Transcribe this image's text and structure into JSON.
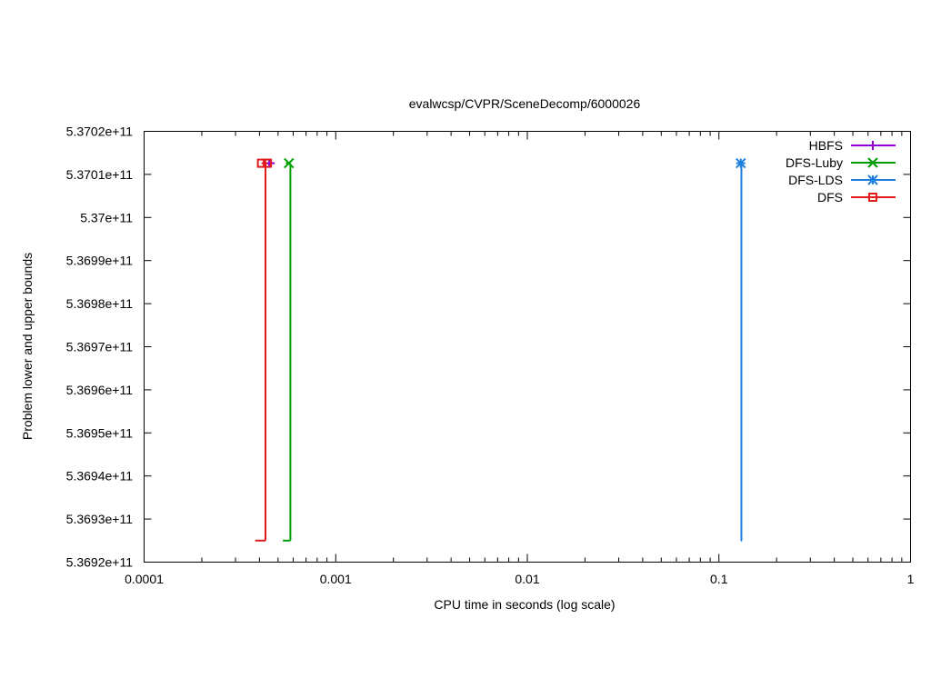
{
  "chart_data": {
    "type": "line",
    "title": "evalwcsp/CVPR/SceneDecomp/6000026",
    "xlabel": "CPU time in seconds (log scale)",
    "ylabel": "Problem lower and upper bounds",
    "x_scale": "log",
    "xlim": [
      0.0001,
      1
    ],
    "ylim": [
      536920000000,
      537020000000
    ],
    "x_ticks": [
      {
        "value": 0.0001,
        "label": "0.0001"
      },
      {
        "value": 0.001,
        "label": "0.001"
      },
      {
        "value": 0.01,
        "label": "0.01"
      },
      {
        "value": 0.1,
        "label": "0.1"
      },
      {
        "value": 1,
        "label": "1"
      }
    ],
    "y_ticks": [
      {
        "value": 536920000000,
        "label": "5.3692e+11"
      },
      {
        "value": 536930000000,
        "label": "5.3693e+11"
      },
      {
        "value": 536940000000,
        "label": "5.3694e+11"
      },
      {
        "value": 536950000000,
        "label": "5.3695e+11"
      },
      {
        "value": 536960000000,
        "label": "5.3696e+11"
      },
      {
        "value": 536970000000,
        "label": "5.3697e+11"
      },
      {
        "value": 536980000000,
        "label": "5.3698e+11"
      },
      {
        "value": 536990000000,
        "label": "5.3699e+11"
      },
      {
        "value": 537000000000,
        "label": "5.37e+11"
      },
      {
        "value": 537010000000,
        "label": "5.3701e+11"
      },
      {
        "value": 537020000000,
        "label": "5.3702e+11"
      }
    ],
    "grid": false,
    "legend_position": "top-right",
    "series": [
      {
        "name": "HBFS",
        "color": "#9400d3",
        "marker": "plus",
        "upper": [
          {
            "x": 0.00042,
            "y": 537012600000
          },
          {
            "x": 0.00048,
            "y": 537012600000
          }
        ],
        "lower": [],
        "markers": [
          {
            "x": 0.00045,
            "y": 537012600000
          }
        ]
      },
      {
        "name": "DFS-Luby",
        "color": "#009e00",
        "marker": "x",
        "upper": [
          {
            "x": 0.00055,
            "y": 537012600000
          },
          {
            "x": 0.00058,
            "y": 537012600000
          }
        ],
        "lower": [
          {
            "x": 0.00053,
            "y": 536925000000
          },
          {
            "x": 0.00058,
            "y": 536925000000
          }
        ],
        "vertical_x": 0.00058,
        "markers": [
          {
            "x": 0.00057,
            "y": 537012600000
          }
        ]
      },
      {
        "name": "DFS-LDS",
        "color": "#1e7fe0",
        "marker": "star",
        "upper": [
          {
            "x": 0.13,
            "y": 537012600000
          },
          {
            "x": 0.132,
            "y": 537012600000
          }
        ],
        "lower": [
          {
            "x": 0.13,
            "y": 536925000000
          },
          {
            "x": 0.132,
            "y": 536925000000
          }
        ],
        "vertical_x": 0.131,
        "markers": [
          {
            "x": 0.13,
            "y": 537012600000
          }
        ]
      },
      {
        "name": "DFS",
        "color": "#e31a1c",
        "marker": "square",
        "upper": [
          {
            "x": 0.00041,
            "y": 537012600000
          },
          {
            "x": 0.00044,
            "y": 537012600000
          }
        ],
        "lower": [
          {
            "x": 0.00038,
            "y": 536925000000
          },
          {
            "x": 0.00043,
            "y": 536925000000
          }
        ],
        "vertical_x": 0.00043,
        "markers": [
          {
            "x": 0.00041,
            "y": 537012600000
          },
          {
            "x": 0.00044,
            "y": 537012600000
          }
        ]
      }
    ]
  }
}
